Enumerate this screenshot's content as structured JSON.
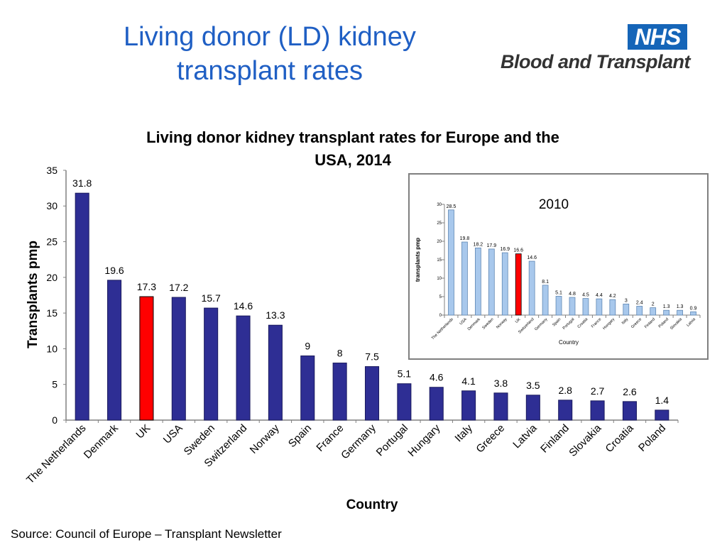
{
  "slide_title": "Living donor (LD) kidney transplant rates",
  "logo": {
    "brand": "NHS",
    "name": "Blood and Transplant"
  },
  "source": "Source: Council of Europe – Transplant Newsletter",
  "colors": {
    "bar": "#2e2e94",
    "highlight": "#ff0000",
    "inset_bar": "#a8c8ec",
    "title": "#1f5fc4"
  },
  "chart_data": [
    {
      "type": "bar",
      "title": "Living donor kidney transplant rates for Europe and the USA, 2014",
      "title_lines": [
        "Living donor kidney transplant rates for Europe and the",
        "USA, 2014"
      ],
      "xlabel": "Country",
      "ylabel": "Transplants pmp",
      "ylim": [
        0,
        35
      ],
      "yticks": [
        0,
        5,
        10,
        15,
        20,
        25,
        30,
        35
      ],
      "highlight": "UK",
      "categories": [
        "The Netherlands",
        "Denmark",
        "UK",
        "USA",
        "Sweden",
        "Switzerland",
        "Norway",
        "Spain",
        "France",
        "Germany",
        "Portugal",
        "Hungary",
        "Italy",
        "Greece",
        "Latvia",
        "Finland",
        "Slovakia",
        "Croatia",
        "Poland"
      ],
      "values": [
        31.8,
        19.6,
        17.3,
        17.2,
        15.7,
        14.6,
        13.3,
        9,
        8,
        7.5,
        5.1,
        4.6,
        4.1,
        3.8,
        3.5,
        2.8,
        2.7,
        2.6,
        1.4
      ]
    },
    {
      "type": "bar",
      "title": "2010",
      "xlabel": "Country",
      "ylabel": "transplants pmp",
      "ylim": [
        0,
        30
      ],
      "yticks": [
        0,
        5,
        10,
        15,
        20,
        25,
        30
      ],
      "highlight": "UK",
      "categories": [
        "The Netherlands",
        "USA",
        "Denmark",
        "Sweden",
        "Norway",
        "UK",
        "Switzerland",
        "Germany",
        "Spain",
        "Portugal",
        "Croatia",
        "France",
        "Hungary",
        "Italy",
        "Greece",
        "Finland",
        "Poland",
        "Slovakia",
        "Latvia"
      ],
      "values": [
        28.5,
        19.8,
        18.2,
        17.9,
        16.9,
        16.6,
        14.6,
        8.1,
        5.1,
        4.8,
        4.5,
        4.4,
        4.2,
        3,
        2.4,
        2,
        1.3,
        1.3,
        0.9
      ]
    }
  ]
}
